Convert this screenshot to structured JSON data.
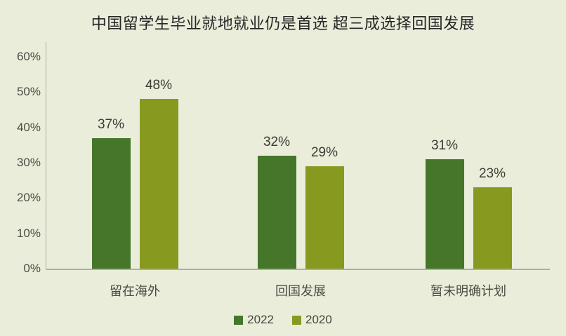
{
  "title": "中国留学生毕业就地就业仍是首选 超三成选择回国发展",
  "colors": {
    "background": "#e9edda",
    "series_2022": "#45762a",
    "series_2020": "#87991e",
    "axis_line": "#afafa2",
    "tick_text": "#4c4c44",
    "category_text": "#4c4c44",
    "value_text": "#3b3b33",
    "title_text": "#262626",
    "legend_text": "#45453e"
  },
  "chart_data": {
    "type": "bar",
    "title": "中国留学生毕业就地就业仍是首选 超三成选择回国发展",
    "categories": [
      "留在海外",
      "回国发展",
      "暂未明确计划"
    ],
    "series": [
      {
        "name": "2022",
        "color": "#45762a",
        "values": [
          37,
          32,
          31
        ],
        "value_labels": [
          "37%",
          "32%",
          "31%"
        ]
      },
      {
        "name": "2020",
        "color": "#87991e",
        "values": [
          48,
          29,
          23
        ],
        "value_labels": [
          "48%",
          "29%",
          "23%"
        ]
      }
    ],
    "xlabel": "",
    "ylabel": "",
    "ylim": [
      0,
      60
    ],
    "y_ticks": [
      "0%",
      "10%",
      "20%",
      "30%",
      "40%",
      "50%",
      "60%"
    ],
    "y_tick_step": 10,
    "grid": false,
    "legend_position": "bottom"
  }
}
